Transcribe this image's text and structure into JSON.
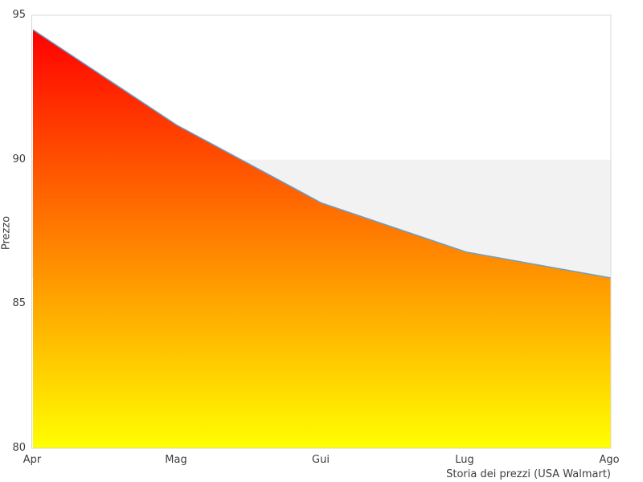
{
  "chart_data": {
    "type": "area",
    "title": "Storia dei prezzi (USA Walmart)",
    "ylabel": "Prezzo",
    "xlabel": "",
    "categories": [
      "Apr",
      "Mag",
      "Gui",
      "Lug",
      "Ago"
    ],
    "values": [
      94.5,
      91.2,
      88.5,
      86.8,
      85.9
    ],
    "ylim": [
      80,
      95
    ],
    "yticks": [
      95,
      90,
      85,
      80
    ],
    "band": {
      "from": 90,
      "to": 85.9
    },
    "grid": false,
    "legend": "none",
    "colors": {
      "gradient_top": "#ff0000",
      "gradient_bottom": "#ffff00",
      "line": "#6b9ec9",
      "band": "#f2f2f2",
      "spine": "#d8d8d8",
      "text": "#3d3d3d"
    }
  }
}
